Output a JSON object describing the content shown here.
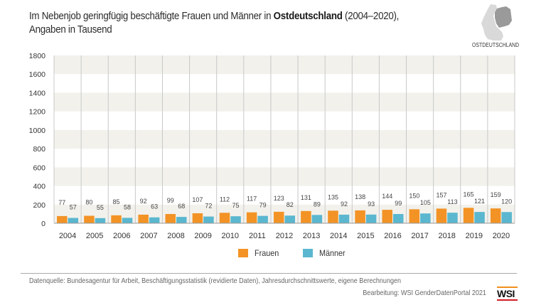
{
  "header": {
    "title_pre": "Im Nebenjob geringfügig beschäftigte Frauen und Männer in ",
    "title_bold": "Ostdeutschland",
    "title_post": " (2004–2020),",
    "subtitle": "Angaben in Tausend",
    "map_label": "OSTDEUTSCHLAND"
  },
  "colors": {
    "frauen": "#f39325",
    "maenner": "#5ab7cf",
    "band": "#f2f1ec",
    "grid": "#c8c8c8"
  },
  "chart_data": {
    "type": "bar",
    "title": "Im Nebenjob geringfügig beschäftigte Frauen und Männer in Ostdeutschland (2004–2020), Angaben in Tausend",
    "xlabel": "",
    "ylabel": "",
    "ylim": [
      0,
      1800
    ],
    "yticks": [
      0,
      200,
      400,
      600,
      800,
      1000,
      1200,
      1400,
      1600,
      1800
    ],
    "categories": [
      "2004",
      "2005",
      "2006",
      "2007",
      "2008",
      "2009",
      "2010",
      "2011",
      "2012",
      "2013",
      "2014",
      "2015",
      "2016",
      "2017",
      "2018",
      "2019",
      "2020"
    ],
    "series": [
      {
        "name": "Frauen",
        "values": [
          77,
          80,
          85,
          92,
          99,
          107,
          112,
          117,
          123,
          131,
          135,
          138,
          144,
          150,
          157,
          165,
          159
        ]
      },
      {
        "name": "Männer",
        "values": [
          57,
          55,
          58,
          63,
          68,
          72,
          75,
          79,
          82,
          89,
          92,
          93,
          99,
          105,
          113,
          121,
          120
        ]
      }
    ],
    "legend": "bottom-center",
    "grid": true
  },
  "footer": {
    "source": "Datenquelle: Bundesagentur für Arbeit, Beschäftigungsstatistik (revidierte Daten), Jahresdurchschnittswerte, eigene Berechnungen",
    "credit": "Bearbeitung: WSI GenderDatenPortal 2021",
    "logo": "WSI"
  }
}
